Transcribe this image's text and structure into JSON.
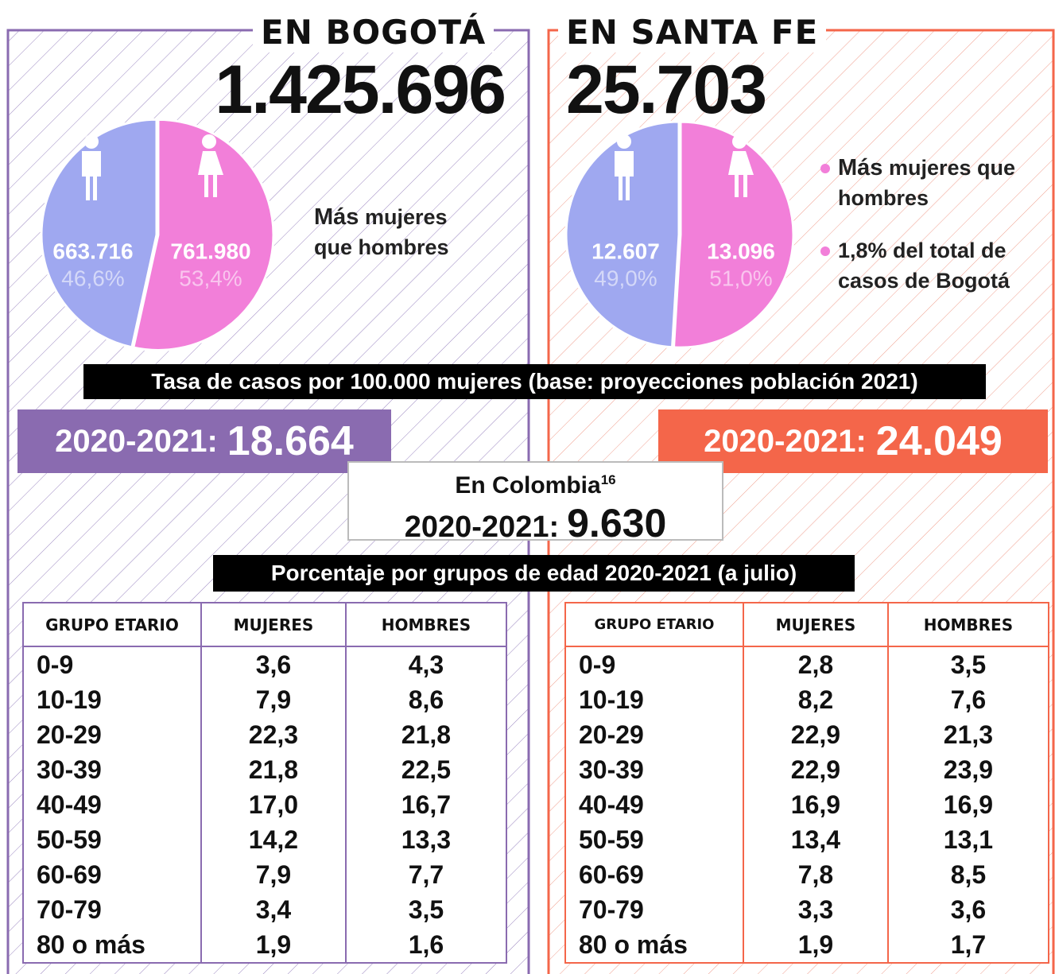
{
  "panels": [
    {
      "title": "EN BOGOTÁ",
      "total": "1.425.696",
      "pie": {
        "type": "pie",
        "values": [
          663716,
          761980
        ],
        "value_labels": [
          "663.716",
          "761.980"
        ],
        "percents": [
          46.6,
          53.4
        ],
        "percent_labels": [
          "46,6%",
          "53,4%"
        ],
        "colors": [
          "#9fa8f0",
          "#f27fd9"
        ]
      },
      "notes": [
        {
          "strong": "Más",
          "text": "mujeres que hombres"
        }
      ],
      "rate": {
        "label": "2020-2021:",
        "value": "18.664",
        "color": "#8a6bb0"
      },
      "table": {
        "header": [
          "GRUPO ETARIO",
          "MUJERES",
          "HOMBRES"
        ],
        "rows": [
          [
            "0-9",
            "3,6",
            "4,3"
          ],
          [
            "10-19",
            "7,9",
            "8,6"
          ],
          [
            "20-29",
            "22,3",
            "21,8"
          ],
          [
            "30-39",
            "21,8",
            "22,5"
          ],
          [
            "40-49",
            "17,0",
            "16,7"
          ],
          [
            "50-59",
            "14,2",
            "13,3"
          ],
          [
            "60-69",
            "7,9",
            "7,7"
          ],
          [
            "70-79",
            "3,4",
            "3,5"
          ],
          [
            "80 o más",
            "1,9",
            "1,6"
          ]
        ]
      }
    },
    {
      "title": "EN SANTA FE",
      "total": "25.703",
      "pie": {
        "type": "pie",
        "values": [
          12607,
          13096
        ],
        "value_labels": [
          "12.607",
          "13.096"
        ],
        "percents": [
          49.0,
          51.0
        ],
        "percent_labels": [
          "49,0%",
          "51,0%"
        ],
        "colors": [
          "#9fa8f0",
          "#f27fd9"
        ]
      },
      "notes": [
        {
          "strong": "Más",
          "text": "mujeres que hombres"
        },
        {
          "text": "1,8% del total de casos de Bogotá"
        }
      ],
      "rate": {
        "label": "2020-2021:",
        "value": "24.049",
        "color": "#f4664a"
      },
      "table": {
        "header": [
          "GRUPO ETARIO",
          "MUJERES",
          "HOMBRES"
        ],
        "rows": [
          [
            "0-9",
            "2,8",
            "3,5"
          ],
          [
            "10-19",
            "8,2",
            "7,6"
          ],
          [
            "20-29",
            "22,9",
            "21,3"
          ],
          [
            "30-39",
            "22,9",
            "23,9"
          ],
          [
            "40-49",
            "16,9",
            "16,9"
          ],
          [
            "50-59",
            "13,4",
            "13,1"
          ],
          [
            "60-69",
            "7,8",
            "8,5"
          ],
          [
            "70-79",
            "3,3",
            "3,6"
          ],
          [
            "80 o más",
            "1,9",
            "1,7"
          ]
        ]
      }
    }
  ],
  "rate_banner": "Tasa de casos por 100.000 mujeres (base: proyecciones población 2021)",
  "colombia": {
    "title": "En Colombia",
    "footnote": "16",
    "label": "2020-2021:",
    "value": "9.630"
  },
  "age_banner": "Porcentaje por grupos de edad 2020-2021 (a julio)"
}
